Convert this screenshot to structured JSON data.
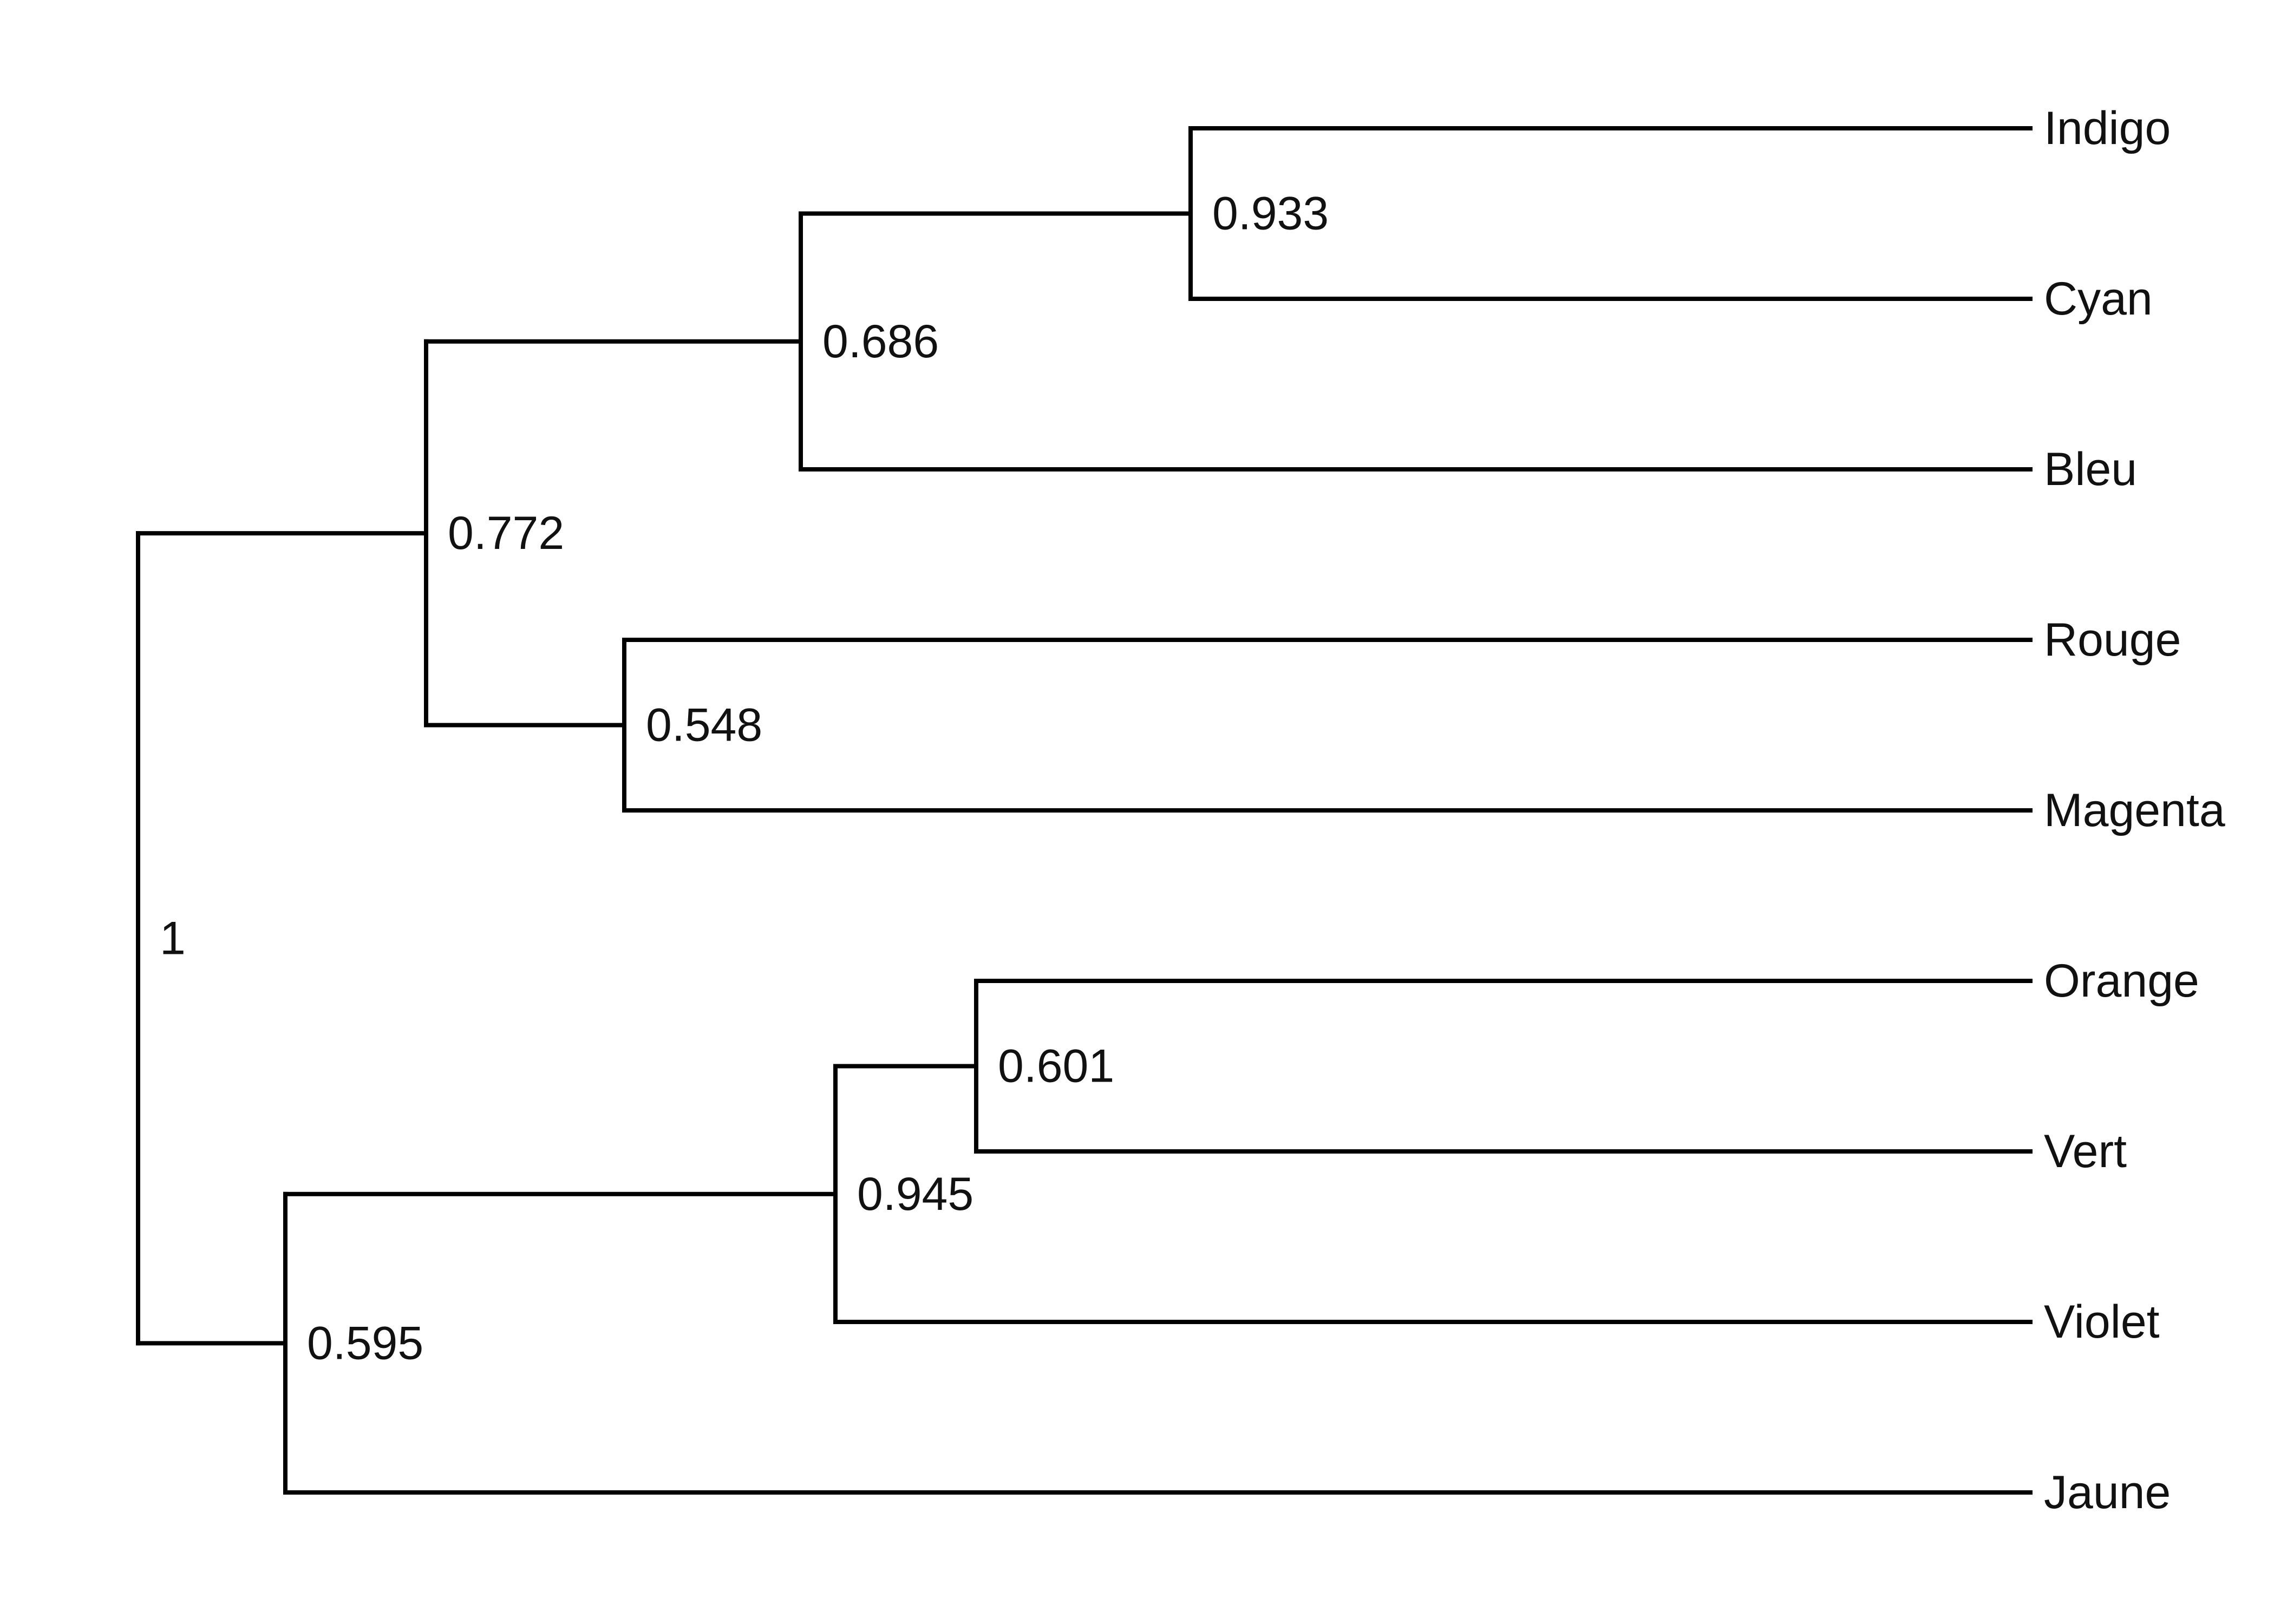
{
  "tree": {
    "id": "n_root",
    "support": "1",
    "children": [
      {
        "id": "n_772",
        "support": "0.772",
        "children": [
          {
            "id": "n_686",
            "support": "0.686",
            "children": [
              {
                "id": "n_933",
                "support": "0.933",
                "children": [
                  {
                    "id": "leaf_indigo",
                    "label": "Indigo"
                  },
                  {
                    "id": "leaf_cyan",
                    "label": "Cyan"
                  }
                ]
              },
              {
                "id": "leaf_bleu",
                "label": "Bleu"
              }
            ]
          },
          {
            "id": "n_548",
            "support": "0.548",
            "children": [
              {
                "id": "leaf_rouge",
                "label": "Rouge"
              },
              {
                "id": "leaf_magenta",
                "label": "Magenta"
              }
            ]
          }
        ]
      },
      {
        "id": "n_595",
        "support": "0.595",
        "children": [
          {
            "id": "n_945",
            "support": "0.945",
            "children": [
              {
                "id": "n_601",
                "support": "0.601",
                "children": [
                  {
                    "id": "leaf_orange",
                    "label": "Orange"
                  },
                  {
                    "id": "leaf_vert",
                    "label": "Vert"
                  }
                ]
              },
              {
                "id": "leaf_violet",
                "label": "Violet"
              }
            ]
          },
          {
            "id": "leaf_jaune",
            "label": "Jaune"
          }
        ]
      }
    ]
  }
}
